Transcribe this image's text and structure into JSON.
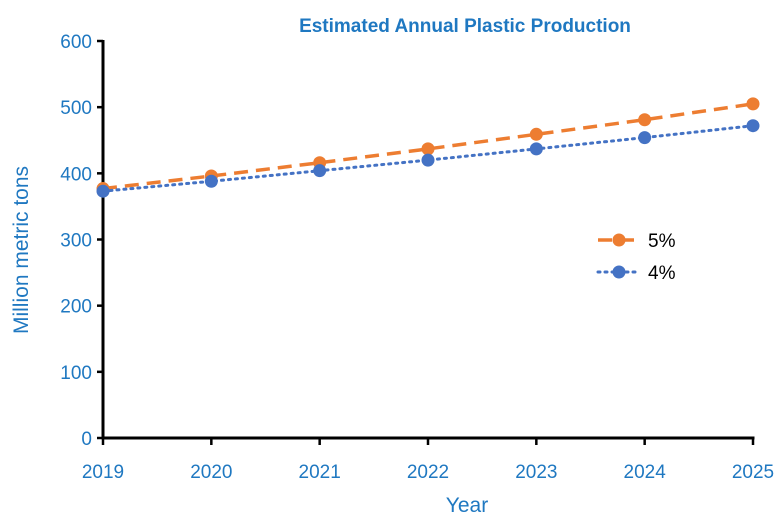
{
  "chart_data": {
    "type": "line",
    "title": "Estimated Annual Plastic Production",
    "xlabel": "Year",
    "ylabel": "Million metric tons",
    "x": [
      2019,
      2020,
      2021,
      2022,
      2023,
      2024,
      2025
    ],
    "xticks": [
      "2019",
      "2020",
      "2021",
      "2022",
      "2023",
      "2024",
      "2025"
    ],
    "ylim": [
      0,
      600
    ],
    "yticks": [
      "0",
      "100",
      "200",
      "300",
      "400",
      "500",
      "600"
    ],
    "grid": false,
    "legend_position": "right",
    "series": [
      {
        "name": "5%",
        "color": "#ED7D31",
        "line_style": "dashed",
        "values": [
          377,
          396,
          416,
          437,
          459,
          481,
          505
        ]
      },
      {
        "name": "4%",
        "color": "#4472C4",
        "line_style": "dotted",
        "values": [
          373,
          388,
          404,
          420,
          437,
          454,
          472
        ]
      }
    ],
    "text_color": "#1F78C1"
  }
}
